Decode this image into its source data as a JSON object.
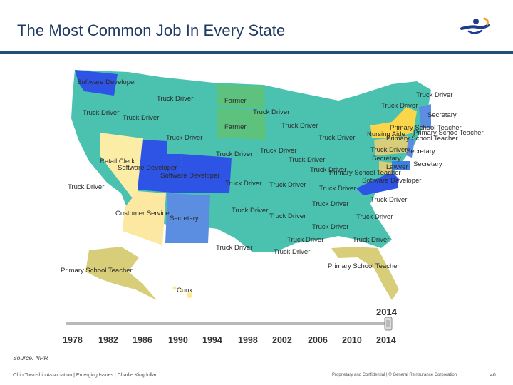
{
  "header": {
    "title": "The Most Common Job In Every State"
  },
  "colors": {
    "truck_driver": "#4bc2b0",
    "software_developer": "#2e54e6",
    "farmer": "#5cc27e",
    "primary_school_teacher": "#d8cd78",
    "secretary": "#5b8de0",
    "retail_clerk": "#fbeca6",
    "customer_service": "#fce8a0",
    "nursing_aide": "#fbd64a",
    "lawyer": "#3f7fe0",
    "cook": "#fde98e",
    "header_rule": "#1f4f7a",
    "title_text": "#1f3b63"
  },
  "map": {
    "labels": [
      "Software Developer",
      "Truck Driver",
      "Farmer",
      "Truck Driver",
      "Truck Driver",
      "Truck Driver",
      "Truck Driver",
      "Farmer",
      "Truck Driver",
      "Truck Driver",
      "Truck Driver",
      "Retail Clerk",
      "Software Developer",
      "Software Developer",
      "Truck Driver",
      "Truck Driver",
      "Truck Driver",
      "Truck Driver",
      "Truck Driver",
      "Truck Driver",
      "Truck Driver",
      "Customer Service",
      "Secretary",
      "Truck Driver",
      "Truck Driver",
      "Truck Driver",
      "Truck Driver",
      "Truck Driver",
      "Truck Driver",
      "Truck Driver",
      "Truck Driver",
      "Truck Driver",
      "Primary School Teacher",
      "Primary School Teacher",
      "Cook",
      "Truck Driver",
      "Truck Driver",
      "Secretary",
      "Primary School Teacher",
      "Primary Schoo Teacher",
      "Nursing Aide",
      "Primary School Teacher",
      "Truck Driver",
      "Secretary",
      "Secretary",
      "Lawyer",
      "Secretary",
      "Primary School Teacher",
      "Software Developer",
      "Truck Driver"
    ]
  },
  "timeline": {
    "years": [
      "1978",
      "1982",
      "1986",
      "1990",
      "1994",
      "1998",
      "2002",
      "2006",
      "2010",
      "2014"
    ],
    "selected_year": "2014"
  },
  "source": "Source: NPR",
  "footer": {
    "left": "Ohio Township Association | Emerging Issues | Charlie Kingdollar",
    "right": "Proprietary and Confidential | © General Reinsurance Corporation",
    "page": "40"
  }
}
